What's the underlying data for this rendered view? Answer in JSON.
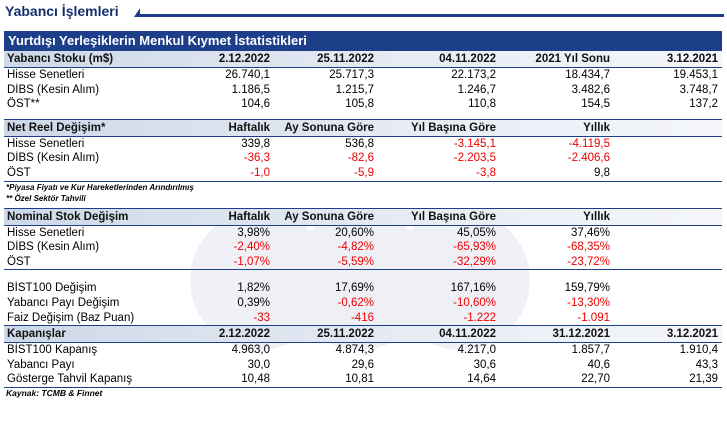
{
  "page_title": "Yabancı İşlemleri",
  "banner": "Yurtdışı Yerleşiklerin Menkul Kıymet İstatistikleri",
  "stock": {
    "header": [
      "Yabancı Stoku (m$)",
      "2.12.2022",
      "25.11.2022",
      "04.11.2022",
      "2021 Yıl Sonu",
      "3.12.2021"
    ],
    "rows": [
      {
        "label": "Hisse Senetleri",
        "values": [
          "26.740,1",
          "25.717,3",
          "22.173,2",
          "18.434,7",
          "19.453,1"
        ]
      },
      {
        "label": "DİBS (Kesin Alım)",
        "values": [
          "1.186,5",
          "1.215,7",
          "1.246,7",
          "3.482,6",
          "3.748,7"
        ]
      },
      {
        "label": "ÖST**",
        "values": [
          "104,6",
          "105,8",
          "110,8",
          "154,5",
          "137,2"
        ]
      }
    ]
  },
  "net": {
    "header": [
      "Net Reel Değişim*",
      "Haftalık",
      "Ay Sonuna Göre",
      "Yıl Başına Göre",
      "Yıllık"
    ],
    "rows": [
      {
        "label": "Hisse Senetleri",
        "values": [
          "339,8",
          "536,8",
          "-3.145,1",
          "-4.119,5"
        ]
      },
      {
        "label": "DİBS (Kesin Alım)",
        "values": [
          "-36,3",
          "-82,6",
          "-2.203,5",
          "-2.406,6"
        ]
      },
      {
        "label": "ÖST",
        "values": [
          "-1,0",
          "-5,9",
          "-3,8",
          "9,8"
        ]
      }
    ]
  },
  "notes": [
    "*Piyasa Fiyatı ve Kur Hareketlerinden Arındırılmış",
    "** Özel Sektör Tahvili"
  ],
  "nominal": {
    "header": [
      "Nominal Stok Değişim",
      "Haftalık",
      "Ay Sonuna Göre",
      "Yıl Başına Göre",
      "Yıllık"
    ],
    "rows": [
      {
        "label": "Hisse Senetleri",
        "values": [
          "3,98%",
          "20,60%",
          "45,05%",
          "37,46%"
        ]
      },
      {
        "label": "DİBS (Kesin Alım)",
        "values": [
          "-2,40%",
          "-4,82%",
          "-65,93%",
          "-68,35%"
        ]
      },
      {
        "label": "ÖST",
        "values": [
          "-1,07%",
          "-5,59%",
          "-32,29%",
          "-23,72%"
        ]
      }
    ]
  },
  "changes": {
    "rows": [
      {
        "label": "BİST100 Değişim",
        "values": [
          "1,82%",
          "17,69%",
          "167,16%",
          "159,79%"
        ]
      },
      {
        "label": "Yabancı Payı Değişim",
        "values": [
          "0,39%",
          "-0,62%",
          "-10,60%",
          "-13,30%"
        ]
      },
      {
        "label": "Faiz Değişim (Baz Puan)",
        "values": [
          "-33",
          "-416",
          "-1.222",
          "-1.091"
        ]
      }
    ]
  },
  "closings": {
    "header": [
      "Kapanışlar",
      "2.12.2022",
      "25.11.2022",
      "04.11.2022",
      "31.12.2021",
      "3.12.2021"
    ],
    "rows": [
      {
        "label": "BİST100 Kapanış",
        "values": [
          "4.963,0",
          "4.874,3",
          "4.217,0",
          "1.857,7",
          "1.910,4"
        ]
      },
      {
        "label": "Yabancı Payı",
        "values": [
          "30,0",
          "29,6",
          "30,6",
          "40,6",
          "43,3"
        ]
      },
      {
        "label": "Gösterge Tahvil Kapanış",
        "values": [
          "10,48",
          "10,81",
          "14,64",
          "22,70",
          "21,39"
        ]
      }
    ]
  },
  "source": "Kaynak: TCMB & Finnet",
  "colors": {
    "navy": "#1d3f8a",
    "negative": "#ee0000"
  }
}
